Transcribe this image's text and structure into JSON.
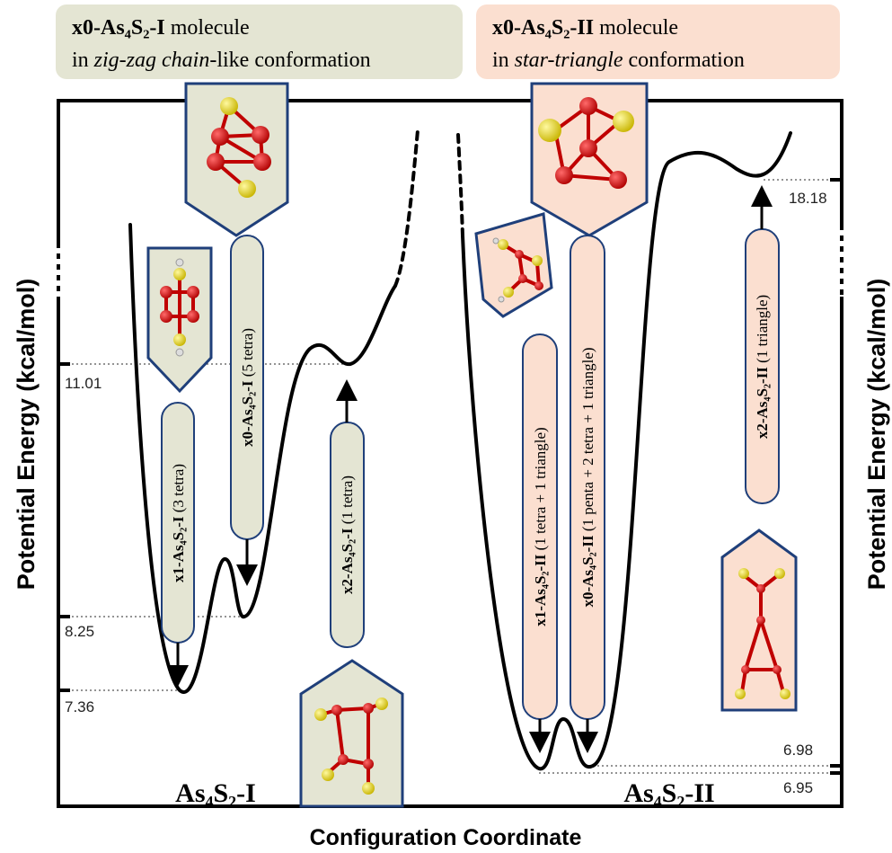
{
  "header": {
    "left": {
      "name": "x0-As₄S₂-I",
      "suffix": "molecule",
      "prefix": "in",
      "conformation": "zig-zag chain",
      "tail": "-like conformation"
    },
    "right": {
      "name": "x0-As₄S₂-II",
      "suffix": "molecule",
      "prefix": "in",
      "conformation": "star-triangle",
      "tail": "conformation"
    }
  },
  "axes": {
    "y_left": "Potential Energy (kcal/mol)",
    "y_right": "Potential Energy (kcal/mol)",
    "x": "Configuration Coordinate"
  },
  "wells": [
    "As₄S₂-I",
    "As₄S₂-II"
  ],
  "levels": [
    11.01,
    8.25,
    7.36,
    6.98,
    6.95,
    18.18
  ],
  "states": [
    {
      "name": "x1-As₄S₂-I",
      "detail": "(3 tetra)"
    },
    {
      "name": "x0-As₄S₂-I",
      "detail": "(5 tetra)"
    },
    {
      "name": "x2-As₄S₂-I",
      "detail": "(1 tetra)"
    },
    {
      "name": "x1-As₄S₂-II",
      "detail": "(1 tetra + 1 triangle)"
    },
    {
      "name": "x0-As₄S₂-II",
      "detail": "(1 penta + 2 tetra + 1 triangle)"
    },
    {
      "name": "x2-As₄S₂-II",
      "detail": "(1 triangle)"
    }
  ]
}
